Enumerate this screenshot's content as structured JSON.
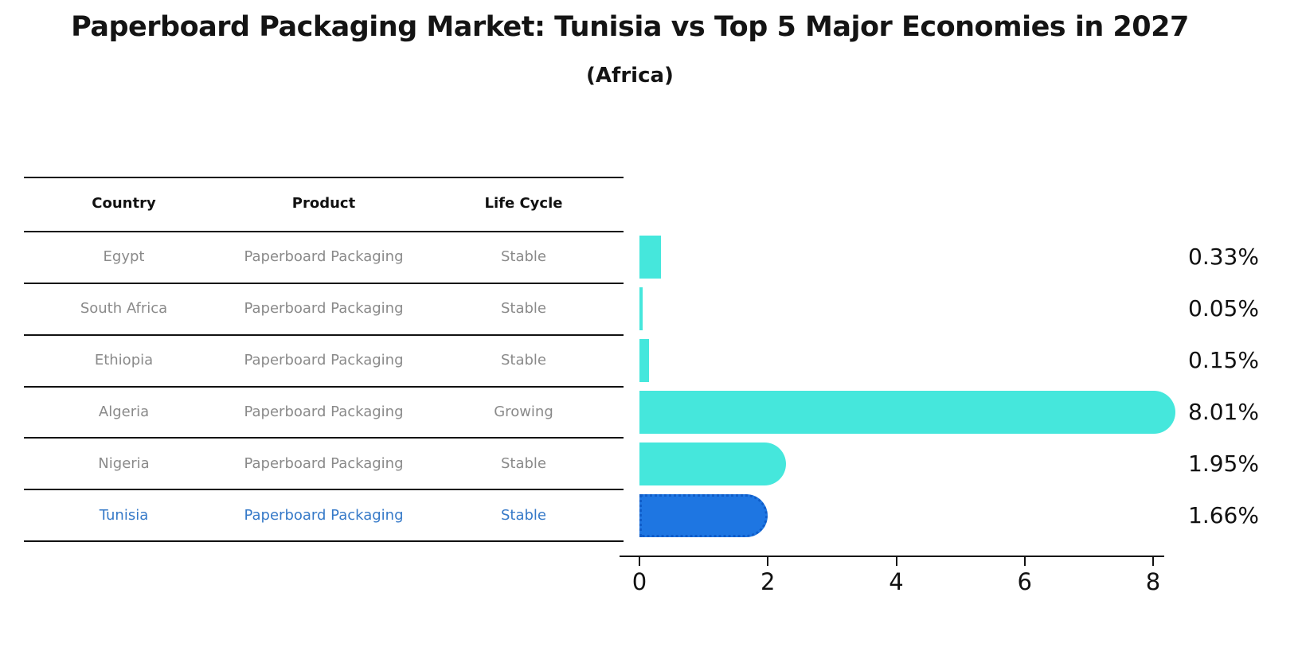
{
  "title": "Paperboard Packaging Market: Tunisia vs Top 5 Major Economies in 2027",
  "subtitle": "(Africa)",
  "table": {
    "headers": [
      "Country",
      "Product",
      "Life Cycle"
    ],
    "rows": [
      {
        "country": "Egypt",
        "product": "Paperboard Packaging",
        "life_cycle": "Stable",
        "highlight": false
      },
      {
        "country": "South Africa",
        "product": "Paperboard Packaging",
        "life_cycle": "Stable",
        "highlight": false
      },
      {
        "country": "Ethiopia",
        "product": "Paperboard Packaging",
        "life_cycle": "Stable",
        "highlight": false
      },
      {
        "country": "Algeria",
        "product": "Paperboard Packaging",
        "life_cycle": "Growing",
        "highlight": false
      },
      {
        "country": "Nigeria",
        "product": "Paperboard Packaging",
        "life_cycle": "Stable",
        "highlight": false
      },
      {
        "country": "Tunisia",
        "product": "Paperboard Packaging",
        "life_cycle": "Stable",
        "highlight": true
      }
    ]
  },
  "chart_data": {
    "type": "bar",
    "orientation": "horizontal",
    "title": "Paperboard Packaging Market: Tunisia vs Top 5 Major Economies in 2027 (Africa)",
    "categories": [
      "Egypt",
      "South Africa",
      "Ethiopia",
      "Algeria",
      "Nigeria",
      "Tunisia"
    ],
    "values": [
      0.33,
      0.05,
      0.15,
      8.01,
      1.95,
      1.66
    ],
    "value_labels": [
      "0.33%",
      "0.05%",
      "0.15%",
      "8.01%",
      "1.95%",
      "1.66%"
    ],
    "x_ticks": [
      0,
      2,
      4,
      6,
      8
    ],
    "xlim": [
      0,
      8.5
    ],
    "grid": false,
    "legend": "none",
    "bar_color": "#45E7DC",
    "highlight_color": "#1E76E2",
    "highlight_border_color": "#0f5cc8",
    "highlight_index": 5,
    "highlight_text_color": "#3579c8"
  }
}
